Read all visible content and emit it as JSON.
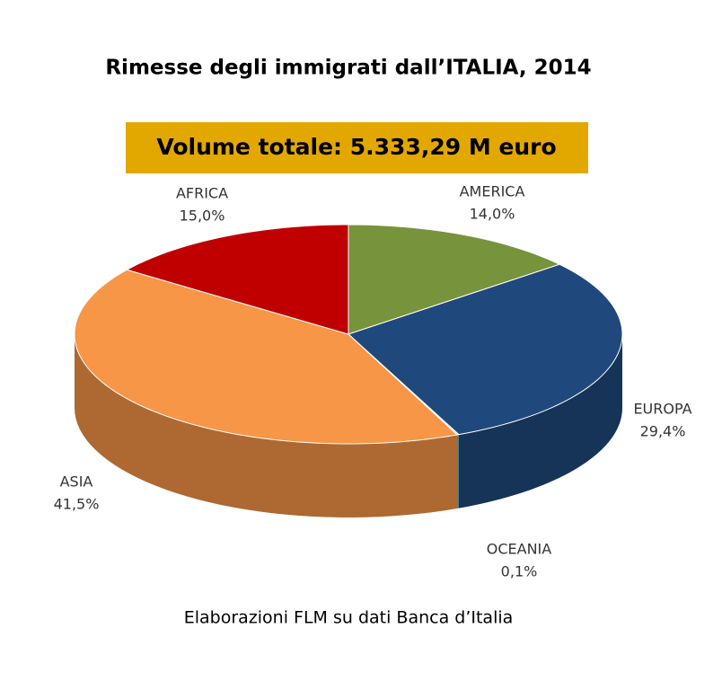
{
  "chart_data": {
    "type": "pie3d",
    "title": "Rimesse degli immigrati dall’ITALIA, 2014",
    "subtitle": "Volume totale: 5.333,29 M euro",
    "source": "Elaborazioni FLM su dati Banca d’Italia",
    "categories": [
      "AMERICA",
      "EUROPA",
      "OCEANIA",
      "ASIA",
      "AFRICA"
    ],
    "values": [
      14.0,
      29.4,
      0.1,
      41.5,
      15.0
    ],
    "value_labels": [
      "14,0%",
      "29,4%",
      "0,1%",
      "41,5%",
      "15,0%"
    ],
    "colors": [
      "#77933c",
      "#1f497d",
      "#4bacc6",
      "#f79646",
      "#c00000"
    ]
  }
}
